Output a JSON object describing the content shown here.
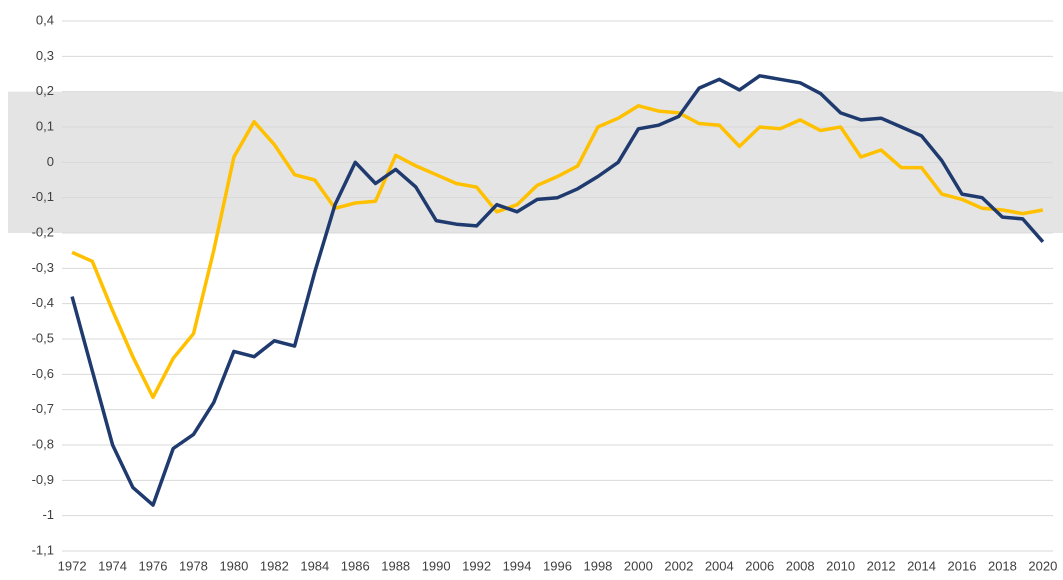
{
  "chart_data": {
    "type": "line",
    "categories": [
      "1972",
      null,
      "1974",
      null,
      "1976",
      null,
      "1978",
      null,
      "1980",
      null,
      "1982",
      null,
      "1984",
      null,
      "1986",
      null,
      "1988",
      null,
      "1990",
      null,
      "1992",
      null,
      "1994",
      null,
      "1996",
      null,
      "1998",
      null,
      "2000",
      null,
      "2002",
      null,
      "2004",
      null,
      "2006",
      null,
      "2008",
      null,
      "2010",
      null,
      "2012",
      null,
      "2014",
      null,
      "2016",
      null,
      "2018",
      null,
      "2020"
    ],
    "series": [
      {
        "color": "#ffc000",
        "values": [
          -0.255,
          -0.28,
          -0.42,
          -0.55,
          -0.665,
          -0.555,
          -0.485,
          -0.25,
          0.015,
          0.115,
          0.05,
          -0.035,
          -0.05,
          -0.13,
          -0.115,
          -0.11,
          0.02,
          -0.01,
          -0.035,
          -0.06,
          -0.07,
          -0.14,
          -0.12,
          -0.065,
          -0.04,
          -0.01,
          0.1,
          0.125,
          0.16,
          0.145,
          0.14,
          0.11,
          0.105,
          0.045,
          0.1,
          0.095,
          0.12,
          0.09,
          0.1,
          0.015,
          0.035,
          -0.015,
          -0.015,
          -0.09,
          -0.105,
          -0.13,
          -0.135,
          -0.145,
          -0.135
        ]
      },
      {
        "color": "#1f3a6e",
        "values": [
          -0.38,
          -0.59,
          -0.8,
          -0.92,
          -0.97,
          -0.81,
          -0.77,
          -0.68,
          -0.535,
          -0.55,
          -0.505,
          -0.52,
          -0.31,
          -0.12,
          0.0,
          -0.06,
          -0.02,
          -0.07,
          -0.165,
          -0.175,
          -0.18,
          -0.12,
          -0.14,
          -0.105,
          -0.1,
          -0.075,
          -0.04,
          0.0,
          0.095,
          0.105,
          0.13,
          0.21,
          0.235,
          0.205,
          0.245,
          0.235,
          0.225,
          0.195,
          0.14,
          0.12,
          0.125,
          0.1,
          0.075,
          0.005,
          -0.09,
          -0.1,
          -0.155,
          -0.16,
          -0.225
        ]
      }
    ],
    "ylim": [
      -1.1,
      0.4
    ],
    "yticks": [
      {
        "value": -1.1,
        "label": "-1,1"
      },
      -1,
      {
        "value": -0.9,
        "label": "-0,9"
      },
      {
        "value": -0.8,
        "label": "-0,8"
      },
      {
        "value": -0.7,
        "label": "-0,7"
      },
      {
        "value": -0.6,
        "label": "-0,6"
      },
      {
        "value": -0.5,
        "label": "-0,5"
      },
      {
        "value": -0.4,
        "label": "-0,4"
      },
      {
        "value": -0.3,
        "label": "-0,3"
      },
      {
        "value": -0.2,
        "label": "-0,2"
      },
      {
        "value": -0.1,
        "label": "-0,1"
      },
      0,
      {
        "value": 0.1,
        "label": "0,1"
      },
      {
        "value": 0.2,
        "label": "0,2"
      },
      {
        "value": 0.3,
        "label": "0,3"
      },
      {
        "value": 0.4,
        "label": "0,4"
      }
    ],
    "grid": true,
    "band": [
      -0.2,
      0.2
    ],
    "band_color": "#e4e4e4"
  }
}
